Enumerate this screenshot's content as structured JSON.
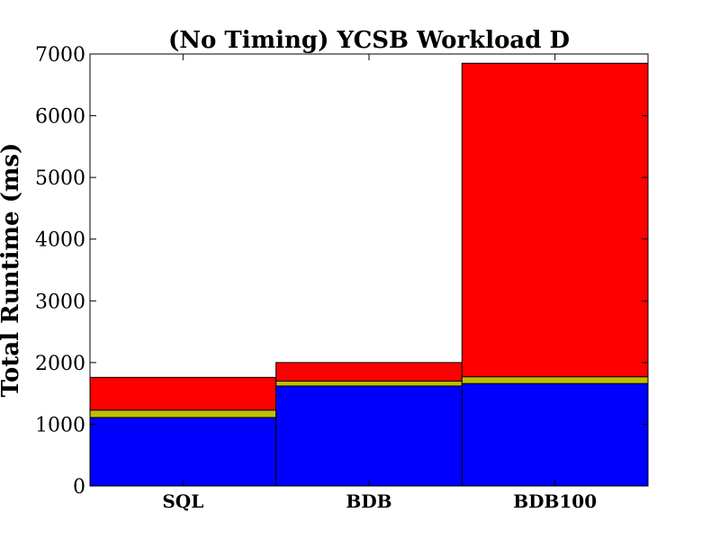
{
  "chart_data": {
    "type": "bar",
    "stacked": true,
    "title": "(No Timing) YCSB Workload D",
    "xlabel": "",
    "ylabel": "Total Runtime (ms)",
    "ylim": [
      0,
      7000
    ],
    "yticks": [
      0,
      1000,
      2000,
      3000,
      4000,
      5000,
      6000,
      7000
    ],
    "categories": [
      "SQL",
      "BDB",
      "BDB100"
    ],
    "series": [
      {
        "color": "#0000ff",
        "values": [
          1110,
          1620,
          1660
        ]
      },
      {
        "color": "#bfbf00",
        "values": [
          120,
          80,
          110
        ]
      },
      {
        "color": "#ff0000",
        "values": [
          530,
          300,
          5080
        ]
      }
    ],
    "grid": false,
    "legend": false
  }
}
